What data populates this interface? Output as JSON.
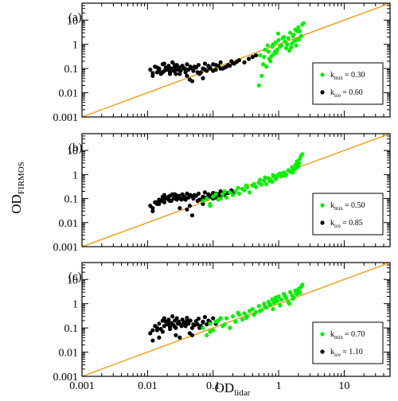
{
  "chart_data": {
    "type": "scatter",
    "xlabel": "OD",
    "xlabel_sub": "lidar",
    "ylabel": "OD",
    "ylabel_sub": "FIRMOS",
    "x_scale": "log",
    "y_scale": "log",
    "xlim": [
      0.001,
      50
    ],
    "ylim": [
      0.001,
      50
    ],
    "x_ticks": [
      0.001,
      0.01,
      0.1,
      1,
      10
    ],
    "x_tick_labels": [
      "0.001",
      "0.01",
      "0.1",
      "1",
      "10"
    ],
    "y_ticks": [
      0.001,
      0.01,
      0.1,
      1,
      10
    ],
    "y_tick_labels": [
      "0.001",
      "0.01",
      "0.1",
      "1",
      "10"
    ],
    "grid": false,
    "legend_position": "right",
    "reference_line": {
      "type": "1:1",
      "color": "#f0a020"
    },
    "colors": {
      "mix": "#00ee00",
      "ice": "#000000"
    },
    "panels": [
      {
        "label": "(a)",
        "legend": [
          {
            "symbol": "k",
            "subscript": "mix",
            "value": "= 0.30",
            "color": "#00ee00"
          },
          {
            "symbol": "k",
            "subscript": "ice",
            "value": "= 0.60",
            "color": "#000000"
          }
        ],
        "series": [
          {
            "color": "#000000",
            "x": [
              0.011,
              0.012,
              0.013,
              0.014,
              0.015,
              0.016,
              0.017,
              0.018,
              0.019,
              0.02,
              0.021,
              0.022,
              0.023,
              0.024,
              0.025,
              0.026,
              0.027,
              0.028,
              0.029,
              0.03,
              0.032,
              0.034,
              0.036,
              0.038,
              0.04,
              0.042,
              0.045,
              0.048,
              0.05,
              0.055,
              0.06,
              0.065,
              0.07,
              0.075,
              0.08,
              0.085,
              0.09,
              0.1,
              0.11,
              0.12,
              0.13,
              0.15,
              0.17,
              0.19,
              0.21,
              0.25,
              0.3,
              0.35,
              0.4,
              0.45,
              0.012,
              0.015,
              0.018,
              0.022,
              0.027,
              0.033,
              0.04,
              0.048,
              0.058,
              0.07,
              0.085,
              0.1,
              0.13,
              0.16,
              0.2,
              0.014,
              0.017,
              0.021,
              0.026,
              0.031,
              0.037,
              0.044,
              0.052,
              0.062,
              0.075,
              0.09,
              0.11,
              0.14,
              0.18,
              0.23
            ],
            "y": [
              0.09,
              0.05,
              0.12,
              0.07,
              0.1,
              0.06,
              0.15,
              0.08,
              0.11,
              0.09,
              0.13,
              0.07,
              0.1,
              0.18,
              0.08,
              0.12,
              0.06,
              0.14,
              0.09,
              0.11,
              0.08,
              0.13,
              0.1,
              0.07,
              0.15,
              0.09,
              0.12,
              0.03,
              0.08,
              0.11,
              0.14,
              0.07,
              0.1,
              0.16,
              0.08,
              0.12,
              0.1,
              0.15,
              0.09,
              0.13,
              0.18,
              0.11,
              0.14,
              0.2,
              0.16,
              0.22,
              0.18,
              0.25,
              0.3,
              0.35,
              0.065,
              0.085,
              0.16,
              0.06,
              0.09,
              0.12,
              0.05,
              0.1,
              0.07,
              0.04,
              0.13,
              0.08,
              0.1,
              0.12,
              0.17,
              0.11,
              0.07,
              0.09,
              0.14,
              0.06,
              0.1,
              0.035,
              0.12,
              0.06,
              0.09,
              0.11,
              0.14,
              0.1,
              0.13,
              0.19
            ]
          },
          {
            "color": "#00ee00",
            "x": [
              0.5,
              0.55,
              0.6,
              0.65,
              0.7,
              0.75,
              0.8,
              0.85,
              0.9,
              0.95,
              1.0,
              1.1,
              1.2,
              1.3,
              1.4,
              1.5,
              1.6,
              1.7,
              1.8,
              1.9,
              2.0,
              2.1,
              2.2,
              0.52,
              0.62,
              0.72,
              0.82,
              0.92,
              1.05,
              1.25,
              1.45,
              1.65,
              1.85,
              2.05,
              0.58,
              0.68,
              0.78,
              0.88,
              0.98,
              1.15,
              1.35,
              1.55,
              1.75,
              1.95,
              2.3,
              2.4
            ],
            "y": [
              0.02,
              0.05,
              0.3,
              0.12,
              0.5,
              0.2,
              0.8,
              0.4,
              1.2,
              0.6,
              1.5,
              0.9,
              2.0,
              0.7,
              1.8,
              3.0,
              1.1,
              2.5,
              4.0,
              1.5,
              5.0,
              3.5,
              2.2,
              0.35,
              0.6,
              0.25,
              1.0,
              0.45,
              0.8,
              1.3,
              0.55,
              2.2,
              0.9,
              1.6,
              0.15,
              0.9,
              0.33,
              0.5,
              2.8,
              1.8,
              1.0,
              0.75,
              1.4,
              3.5,
              6.5,
              7.5
            ]
          }
        ]
      },
      {
        "label": "(b)",
        "legend": [
          {
            "symbol": "k",
            "subscript": "mix",
            "value": "= 0.50",
            "color": "#00ee00"
          },
          {
            "symbol": "k",
            "subscript": "ice",
            "value": "= 0.85",
            "color": "#000000"
          }
        ],
        "series": [
          {
            "color": "#000000",
            "x": [
              0.011,
              0.012,
              0.013,
              0.014,
              0.015,
              0.016,
              0.017,
              0.018,
              0.019,
              0.02,
              0.021,
              0.022,
              0.023,
              0.024,
              0.025,
              0.026,
              0.027,
              0.028,
              0.029,
              0.03,
              0.032,
              0.034,
              0.036,
              0.038,
              0.04,
              0.042,
              0.045,
              0.048,
              0.05,
              0.055,
              0.06,
              0.065,
              0.07,
              0.075,
              0.08,
              0.085,
              0.09,
              0.1,
              0.11,
              0.12,
              0.13,
              0.15,
              0.17,
              0.19,
              0.21,
              0.012,
              0.015,
              0.018,
              0.022,
              0.027,
              0.033,
              0.04,
              0.048,
              0.058,
              0.07,
              0.085,
              0.1,
              0.13,
              0.014,
              0.017,
              0.021,
              0.026,
              0.031,
              0.037,
              0.044,
              0.052,
              0.062,
              0.075,
              0.09,
              0.11
            ],
            "y": [
              0.05,
              0.04,
              0.07,
              0.06,
              0.09,
              0.08,
              0.12,
              0.07,
              0.1,
              0.11,
              0.09,
              0.13,
              0.08,
              0.15,
              0.1,
              0.12,
              0.14,
              0.09,
              0.11,
              0.13,
              0.1,
              0.15,
              0.12,
              0.09,
              0.16,
              0.11,
              0.14,
              0.02,
              0.1,
              0.13,
              0.16,
              0.09,
              0.12,
              0.18,
              0.1,
              0.14,
              0.12,
              0.17,
              0.11,
              0.15,
              0.2,
              0.14,
              0.17,
              0.22,
              0.18,
              0.03,
              0.06,
              0.14,
              0.08,
              0.11,
              0.09,
              0.035,
              0.12,
              0.08,
              0.06,
              0.15,
              0.1,
              0.12,
              0.07,
              0.1,
              0.12,
              0.15,
              0.04,
              0.11,
              0.05,
              0.14,
              0.09,
              0.11,
              0.13,
              0.16
            ]
          },
          {
            "color": "#00ee00",
            "x": [
              0.07,
              0.08,
              0.09,
              0.1,
              0.12,
              0.14,
              0.16,
              0.18,
              0.2,
              0.22,
              0.25,
              0.28,
              0.3,
              0.33,
              0.36,
              0.4,
              0.45,
              0.5,
              0.55,
              0.6,
              0.65,
              0.7,
              0.75,
              0.8,
              0.85,
              0.9,
              0.95,
              1.0,
              1.1,
              1.2,
              1.3,
              1.4,
              1.5,
              1.6,
              1.7,
              1.8,
              1.9,
              2.0,
              2.1,
              2.2,
              2.3,
              0.09,
              0.11,
              0.13,
              0.15,
              0.24,
              0.32,
              0.42,
              0.52,
              0.62,
              0.72,
              0.82,
              0.92,
              1.05,
              1.25,
              1.45,
              1.65,
              1.85,
              2.05
            ],
            "y": [
              0.08,
              0.1,
              0.06,
              0.12,
              0.09,
              0.15,
              0.11,
              0.18,
              0.14,
              0.2,
              0.16,
              0.25,
              0.22,
              0.3,
              0.18,
              0.35,
              0.3,
              0.45,
              0.38,
              0.55,
              0.4,
              0.7,
              0.6,
              0.5,
              0.8,
              0.65,
              0.9,
              1.0,
              0.85,
              1.2,
              1.0,
              1.5,
              1.3,
              2.0,
              1.6,
              2.5,
              3.5,
              2.2,
              4.5,
              6.0,
              7.0,
              0.05,
              0.15,
              0.1,
              0.2,
              0.28,
              0.35,
              0.4,
              0.6,
              0.75,
              0.55,
              0.95,
              0.7,
              1.1,
              0.9,
              1.4,
              1.2,
              1.8,
              3.0
            ]
          }
        ]
      },
      {
        "label": "(c)",
        "legend": [
          {
            "symbol": "k",
            "subscript": "mix",
            "value": "= 0.70",
            "color": "#00ee00"
          },
          {
            "symbol": "k",
            "subscript": "ice",
            "value": "= 1.10",
            "color": "#000000"
          }
        ],
        "series": [
          {
            "color": "#000000",
            "x": [
              0.011,
              0.012,
              0.013,
              0.014,
              0.015,
              0.016,
              0.017,
              0.018,
              0.019,
              0.02,
              0.021,
              0.022,
              0.023,
              0.024,
              0.025,
              0.026,
              0.027,
              0.028,
              0.029,
              0.03,
              0.032,
              0.034,
              0.036,
              0.038,
              0.04,
              0.042,
              0.045,
              0.048,
              0.05,
              0.055,
              0.06,
              0.065,
              0.07,
              0.075,
              0.08,
              0.085,
              0.09,
              0.1,
              0.11,
              0.012,
              0.015,
              0.018,
              0.022,
              0.027,
              0.033,
              0.04,
              0.048,
              0.058,
              0.07,
              0.014,
              0.017,
              0.021,
              0.026,
              0.031,
              0.037,
              0.044,
              0.052,
              0.062
            ],
            "y": [
              0.06,
              0.08,
              0.12,
              0.1,
              0.15,
              0.09,
              0.2,
              0.12,
              0.18,
              0.14,
              0.22,
              0.11,
              0.16,
              0.3,
              0.13,
              0.2,
              0.1,
              0.25,
              0.15,
              0.18,
              0.14,
              0.22,
              0.17,
              0.12,
              0.26,
              0.15,
              0.2,
              0.05,
              0.14,
              0.19,
              0.24,
              0.12,
              0.17,
              0.28,
              0.14,
              0.2,
              0.17,
              0.25,
              0.15,
              0.03,
              0.04,
              0.25,
              0.09,
              0.05,
              0.12,
              0.2,
              0.1,
              0.14,
              0.18,
              0.08,
              0.07,
              0.16,
              0.11,
              0.04,
              0.15,
              0.06,
              0.13,
              0.1
            ]
          },
          {
            "color": "#00ee00",
            "x": [
              0.07,
              0.08,
              0.09,
              0.1,
              0.12,
              0.14,
              0.16,
              0.18,
              0.2,
              0.22,
              0.25,
              0.28,
              0.3,
              0.33,
              0.36,
              0.4,
              0.45,
              0.5,
              0.55,
              0.6,
              0.65,
              0.7,
              0.75,
              0.8,
              0.85,
              0.9,
              0.95,
              1.0,
              1.1,
              1.2,
              1.3,
              1.4,
              1.5,
              1.6,
              1.7,
              1.8,
              1.9,
              2.0,
              2.1,
              2.2,
              2.3,
              0.09,
              0.11,
              0.13,
              0.15,
              0.24,
              0.32,
              0.42,
              0.52,
              0.62,
              0.72,
              0.82,
              0.92,
              1.05,
              1.25,
              1.45,
              1.65,
              1.85,
              2.05
            ],
            "y": [
              0.1,
              0.05,
              0.15,
              0.08,
              0.2,
              0.12,
              0.25,
              0.1,
              0.3,
              0.18,
              0.35,
              0.22,
              0.4,
              0.3,
              0.5,
              0.6,
              0.45,
              0.8,
              0.55,
              1.0,
              0.7,
              1.2,
              0.9,
              1.5,
              1.1,
              1.8,
              1.3,
              2.0,
              1.5,
              2.5,
              1.7,
              1.2,
              3.0,
              2.2,
              1.8,
              3.5,
              2.5,
              4.0,
              2.8,
              5.0,
              6.0,
              0.07,
              0.18,
              0.25,
              0.14,
              0.42,
              0.26,
              0.35,
              0.5,
              0.75,
              0.95,
              0.6,
              1.4,
              0.85,
              2.0,
              1.0,
              1.6,
              2.6,
              3.2
            ]
          }
        ]
      }
    ]
  }
}
